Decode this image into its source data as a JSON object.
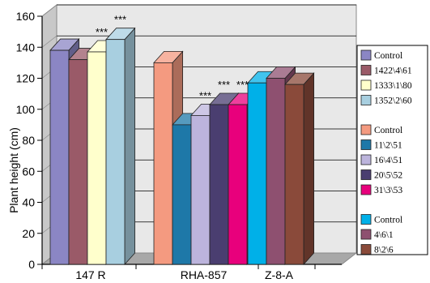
{
  "chart_data": {
    "type": "bar",
    "style": "3d-clustered",
    "ylabel": "Plant height (cm)",
    "ylim": [
      0,
      160
    ],
    "yticks": [
      0,
      20,
      40,
      60,
      80,
      100,
      120,
      140,
      160
    ],
    "grid": "horizontal",
    "legend_position": "right",
    "groups": [
      {
        "category": "147 R",
        "bars": [
          {
            "name": "Control",
            "value": 138,
            "color": "#8b86c4",
            "annotation": ""
          },
          {
            "name": "1422\\4\\61",
            "value": 132,
            "color": "#9a5a68",
            "annotation": ""
          },
          {
            "name": "1333\\1\\80",
            "value": 137,
            "color": "#ffffcc",
            "annotation": "***"
          },
          {
            "name": "1352\\2\\60",
            "value": 145,
            "color": "#a8cfe0",
            "annotation": "***"
          }
        ]
      },
      {
        "category": "RHA-857",
        "bars": [
          {
            "name": "Control",
            "value": 130,
            "color": "#f49a80",
            "annotation": ""
          },
          {
            "name": "11\\2\\51",
            "value": 90,
            "color": "#1e78a8",
            "annotation": ""
          },
          {
            "name": "16\\4\\51",
            "value": 96,
            "color": "#bcb4dc",
            "annotation": "***"
          },
          {
            "name": "20\\5\\52",
            "value": 103,
            "color": "#4a3e70",
            "annotation": "***"
          },
          {
            "name": "31\\3\\53",
            "value": 103,
            "color": "#e8007c",
            "annotation": "***"
          }
        ]
      },
      {
        "category": "Z-8-A",
        "bars": [
          {
            "name": "Control",
            "value": 117,
            "color": "#00b0e8",
            "annotation": ""
          },
          {
            "name": "4\\6\\1",
            "value": 120,
            "color": "#8e5070",
            "annotation": ""
          },
          {
            "name": "8\\2\\6",
            "value": 116,
            "color": "#8a4a3a",
            "annotation": ""
          }
        ]
      }
    ]
  }
}
